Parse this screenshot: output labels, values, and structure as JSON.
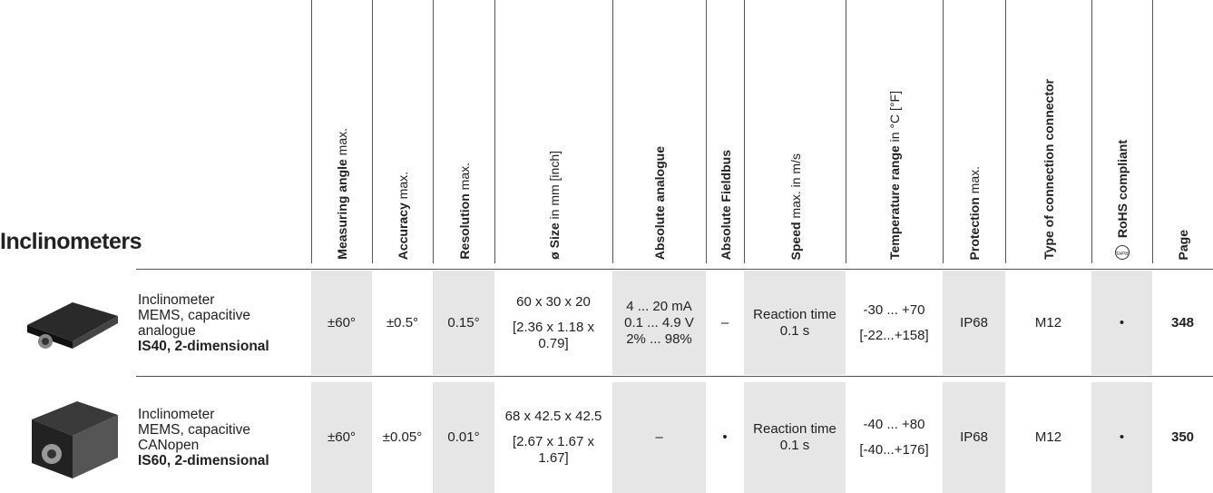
{
  "title": "Inclinometers",
  "columns": [
    {
      "bold": "Measuring angle",
      "normal": " max."
    },
    {
      "bold": "Accuracy",
      "normal": " max."
    },
    {
      "bold": "Resolution",
      "normal": " max."
    },
    {
      "bold": "ø Size",
      "normal": " in mm [inch]"
    },
    {
      "bold": "Absolute analogue"
    },
    {
      "bold": "Absolute Fieldbus"
    },
    {
      "bold": "Speed",
      "normal": " max. in m/s"
    },
    {
      "bold": "Temperature range",
      "normal": " in °C [°F]"
    },
    {
      "bold": "Protection",
      "normal": " max."
    },
    {
      "bold": "Type of connection connector"
    },
    {
      "bold": "RoHS compliant",
      "icon": "RoHS"
    },
    {
      "bold": "Page"
    }
  ],
  "rows": [
    {
      "description": [
        "Inclinometer",
        "MEMS, capacitive",
        "analogue"
      ],
      "model": "IS40, 2-dimensional",
      "cells": [
        [
          "±60°"
        ],
        [
          "±0.5°"
        ],
        [
          "0.15°"
        ],
        [
          "60 x 30 x 20",
          "[2.36 x 1.18 x 0.79]"
        ],
        [
          "4 ... 20 mA",
          "0.1 ... 4.9 V",
          "2% ... 98%"
        ],
        [
          "–"
        ],
        [
          "Reaction time 0.1 s"
        ],
        [
          "-30 ... +70",
          "[-22...+158]"
        ],
        [
          "IP68"
        ],
        [
          "M12"
        ],
        [
          "•"
        ],
        [
          "348"
        ]
      ]
    },
    {
      "description": [
        "Inclinometer",
        "MEMS, capacitive",
        "CANopen"
      ],
      "model": "IS60, 2-dimensional",
      "cells": [
        [
          "±60°"
        ],
        [
          "±0.05°"
        ],
        [
          "0.01°"
        ],
        [
          "68 x 42.5 x 42.5",
          "[2.67 x 1.67 x 1.67]"
        ],
        [
          "–"
        ],
        [
          "•"
        ],
        [
          "Reaction time 0.1 s"
        ],
        [
          "-40 ... +80",
          "[-40...+176]"
        ],
        [
          "IP68"
        ],
        [
          "M12"
        ],
        [
          "•"
        ],
        [
          "350"
        ]
      ]
    }
  ]
}
